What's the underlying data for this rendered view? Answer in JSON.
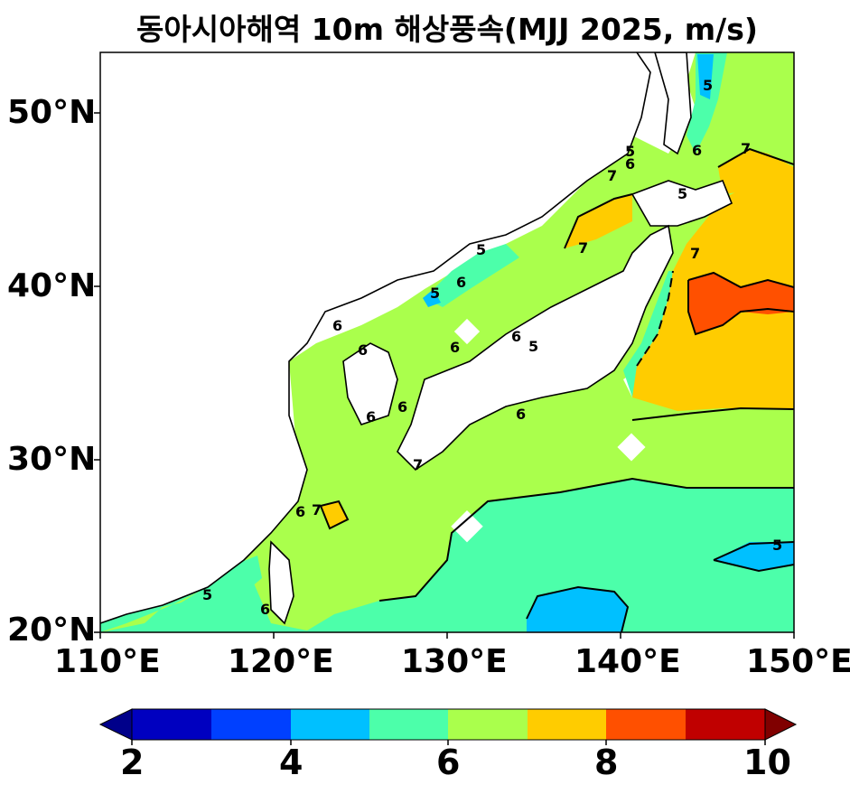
{
  "title": "동아시아해역 10m 해상풍속(MJJ 2025, m/s)",
  "map": {
    "lon_range": [
      110,
      150
    ],
    "lat_range": [
      20,
      53.5
    ],
    "lat_ticks": [
      "50°N",
      "40°N",
      "30°N",
      "20°N"
    ],
    "lon_ticks": [
      "110°E",
      "120°E",
      "130°E",
      "140°E",
      "150°E"
    ],
    "contour_labels": [
      "5",
      "5",
      "5",
      "5",
      "5",
      "5",
      "5",
      "5",
      "6",
      "6",
      "6",
      "6",
      "6",
      "6",
      "6",
      "6",
      "6",
      "6",
      "6",
      "6",
      "7",
      "7",
      "7",
      "7",
      "7",
      "7"
    ]
  },
  "colorbar": {
    "ticks": [
      "2",
      "4",
      "6",
      "8",
      "10"
    ],
    "bins": [
      {
        "from": 2,
        "to": 3,
        "color": "#0000c0"
      },
      {
        "from": 3,
        "to": 4,
        "color": "#0040ff"
      },
      {
        "from": 4,
        "to": 5,
        "color": "#00c0ff"
      },
      {
        "from": 5,
        "to": 6,
        "color": "#4cffaa"
      },
      {
        "from": 6,
        "to": 7,
        "color": "#aaff4c"
      },
      {
        "from": 7,
        "to": 8,
        "color": "#ffcc00"
      },
      {
        "from": 8,
        "to": 9,
        "color": "#ff5000"
      },
      {
        "from": 9,
        "to": 10,
        "color": "#c00000"
      }
    ],
    "under_color": "#00008a",
    "over_color": "#800000"
  }
}
